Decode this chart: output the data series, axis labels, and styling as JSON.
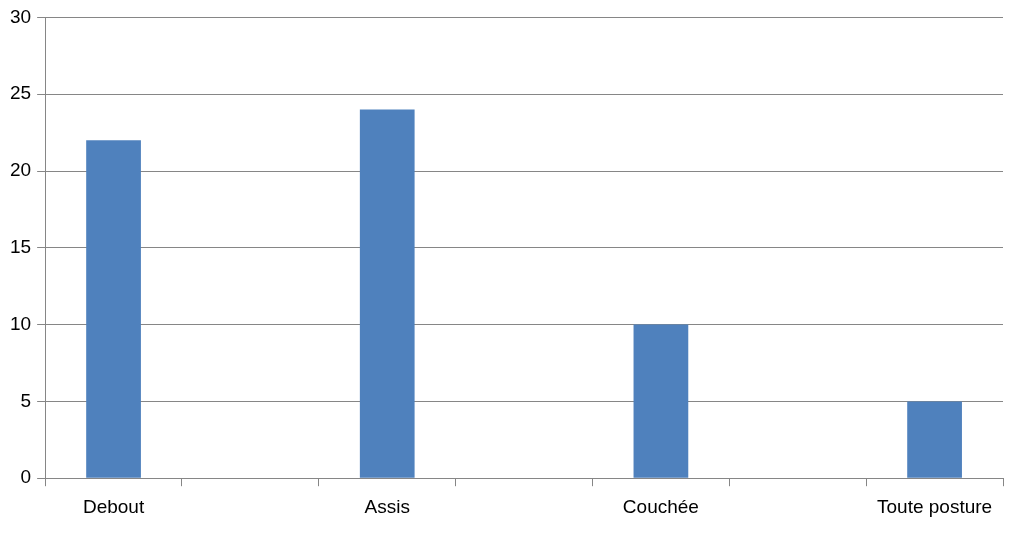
{
  "chart_data": {
    "type": "bar",
    "categories": [
      "Debout",
      null,
      "Assis",
      null,
      "Couchée",
      null,
      "Toute posture"
    ],
    "values": [
      22,
      null,
      24,
      null,
      10,
      null,
      5
    ],
    "color": "#4f81bd",
    "ylim": [
      0,
      30
    ],
    "yticks": [
      0,
      5,
      10,
      15,
      20,
      25,
      30
    ],
    "grid": "y",
    "legend": false
  }
}
